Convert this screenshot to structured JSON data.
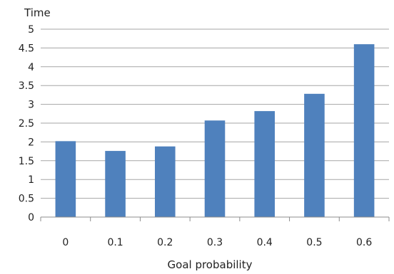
{
  "chart_data": {
    "type": "bar",
    "title": "",
    "xlabel": "Goal probability",
    "ylabel": "Time",
    "categories": [
      "0",
      "0.1",
      "0.2",
      "0.3",
      "0.4",
      "0.5",
      "0.6"
    ],
    "series": [
      {
        "values": [
          2.02,
          1.76,
          1.88,
          2.57,
          2.82,
          3.28,
          4.6
        ],
        "color": "#4f81bd"
      }
    ],
    "ylim": [
      0,
      5
    ],
    "yticks": [
      "0",
      "0.5",
      "1",
      "1.5",
      "2",
      "2.5",
      "3",
      "3.5",
      "4",
      "4.5",
      "5"
    ],
    "grid": true,
    "legend": "none"
  }
}
